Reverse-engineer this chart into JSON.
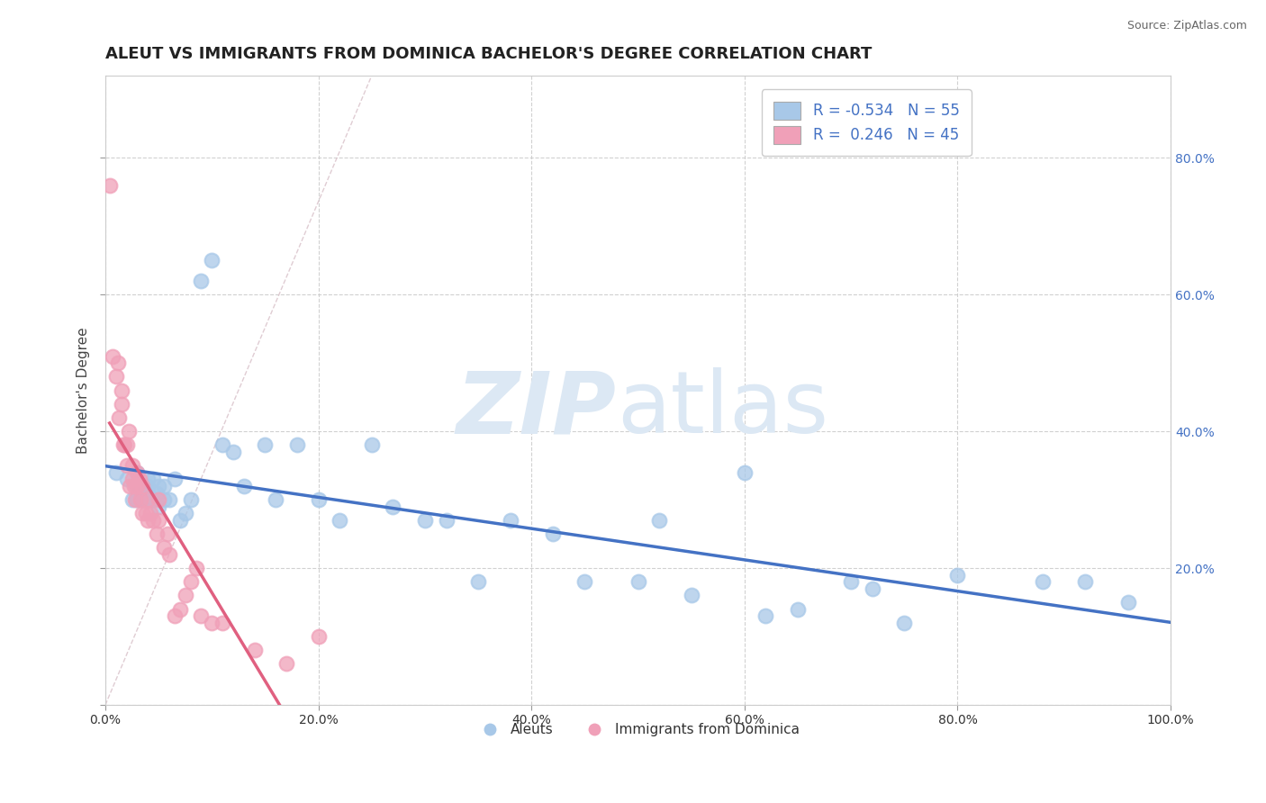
{
  "title": "ALEUT VS IMMIGRANTS FROM DOMINICA BACHELOR'S DEGREE CORRELATION CHART",
  "source": "Source: ZipAtlas.com",
  "ylabel": "Bachelor's Degree",
  "xlim": [
    0,
    1.0
  ],
  "ylim": [
    0,
    0.92
  ],
  "aleut_R": -0.534,
  "aleut_N": 55,
  "dominica_R": 0.246,
  "dominica_N": 45,
  "aleut_color": "#a8c8e8",
  "dominica_color": "#f0a0b8",
  "aleut_line_color": "#4472c4",
  "dominica_line_color": "#e06080",
  "background_color": "#ffffff",
  "grid_color": "#cccccc",
  "title_fontsize": 13,
  "legend_R_color": "#4472c4",
  "right_ytick_vals": [
    0.0,
    0.2,
    0.4,
    0.6,
    0.8
  ],
  "right_ytick_labels": [
    "",
    "20.0%",
    "40.0%",
    "60.0%",
    "80.0%"
  ],
  "xtick_vals": [
    0.0,
    0.2,
    0.4,
    0.6,
    0.8,
    1.0
  ],
  "xtick_labels": [
    "0.0%",
    "20.0%",
    "40.0%",
    "60.0%",
    "80.0%",
    "100.0%"
  ],
  "aleut_x": [
    0.01,
    0.02,
    0.025,
    0.03,
    0.03,
    0.03,
    0.035,
    0.035,
    0.04,
    0.04,
    0.04,
    0.04,
    0.045,
    0.045,
    0.048,
    0.05,
    0.05,
    0.055,
    0.055,
    0.06,
    0.065,
    0.07,
    0.075,
    0.08,
    0.09,
    0.1,
    0.11,
    0.12,
    0.13,
    0.15,
    0.16,
    0.18,
    0.2,
    0.22,
    0.25,
    0.27,
    0.3,
    0.32,
    0.35,
    0.38,
    0.42,
    0.45,
    0.5,
    0.52,
    0.55,
    0.6,
    0.62,
    0.65,
    0.7,
    0.72,
    0.75,
    0.8,
    0.88,
    0.92,
    0.96
  ],
  "aleut_y": [
    0.34,
    0.33,
    0.3,
    0.32,
    0.3,
    0.34,
    0.3,
    0.32,
    0.32,
    0.31,
    0.33,
    0.3,
    0.3,
    0.33,
    0.31,
    0.29,
    0.32,
    0.3,
    0.32,
    0.3,
    0.33,
    0.27,
    0.28,
    0.3,
    0.62,
    0.65,
    0.38,
    0.37,
    0.32,
    0.38,
    0.3,
    0.38,
    0.3,
    0.27,
    0.38,
    0.29,
    0.27,
    0.27,
    0.18,
    0.27,
    0.25,
    0.18,
    0.18,
    0.27,
    0.16,
    0.34,
    0.13,
    0.14,
    0.18,
    0.17,
    0.12,
    0.19,
    0.18,
    0.18,
    0.15
  ],
  "dominica_x": [
    0.004,
    0.007,
    0.01,
    0.012,
    0.013,
    0.015,
    0.015,
    0.017,
    0.018,
    0.02,
    0.02,
    0.022,
    0.023,
    0.025,
    0.025,
    0.027,
    0.028,
    0.03,
    0.03,
    0.032,
    0.033,
    0.035,
    0.035,
    0.038,
    0.04,
    0.04,
    0.042,
    0.045,
    0.048,
    0.05,
    0.05,
    0.055,
    0.058,
    0.06,
    0.065,
    0.07,
    0.075,
    0.08,
    0.085,
    0.09,
    0.1,
    0.11,
    0.14,
    0.17,
    0.2
  ],
  "dominica_y": [
    0.76,
    0.51,
    0.48,
    0.5,
    0.42,
    0.44,
    0.46,
    0.38,
    0.38,
    0.35,
    0.38,
    0.4,
    0.32,
    0.33,
    0.35,
    0.32,
    0.3,
    0.32,
    0.34,
    0.33,
    0.3,
    0.32,
    0.28,
    0.28,
    0.27,
    0.3,
    0.28,
    0.27,
    0.25,
    0.27,
    0.3,
    0.23,
    0.25,
    0.22,
    0.13,
    0.14,
    0.16,
    0.18,
    0.2,
    0.13,
    0.12,
    0.12,
    0.08,
    0.06,
    0.1
  ]
}
